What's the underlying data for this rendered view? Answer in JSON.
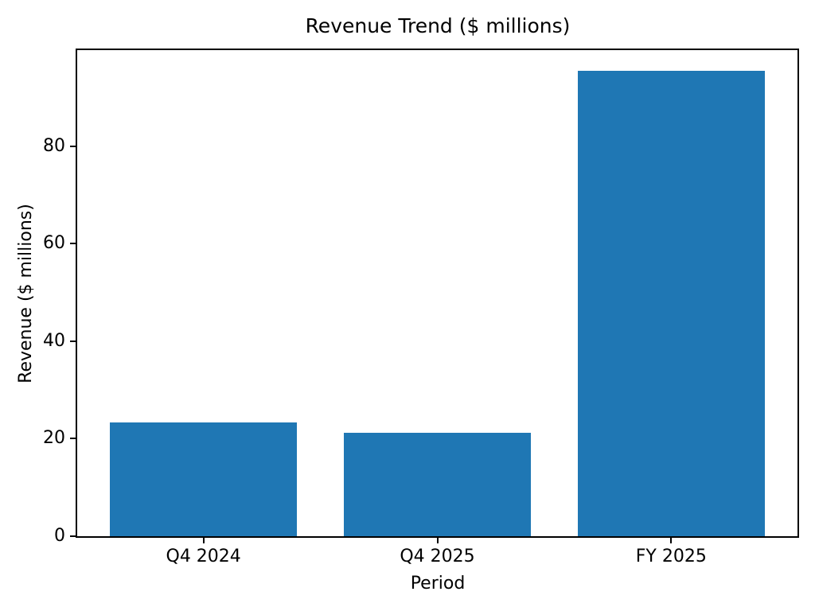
{
  "chart_data": {
    "type": "bar",
    "title": "Revenue Trend ($ millions)",
    "xlabel": "Period",
    "ylabel": "Revenue ($ millions)",
    "categories": [
      "Q4 2024",
      "Q4 2025",
      "FY 2025"
    ],
    "values": [
      23.3,
      21.3,
      95.5
    ],
    "bar_color": "#1f77b4",
    "axis_color": "#000000",
    "background_color": "#ffffff",
    "ylim": [
      0,
      99.75
    ],
    "yticks": [
      0,
      20,
      40,
      60,
      80
    ],
    "xlim": [
      -0.54,
      2.54
    ],
    "bar_width": 0.8,
    "grid": false,
    "legend": "none"
  }
}
